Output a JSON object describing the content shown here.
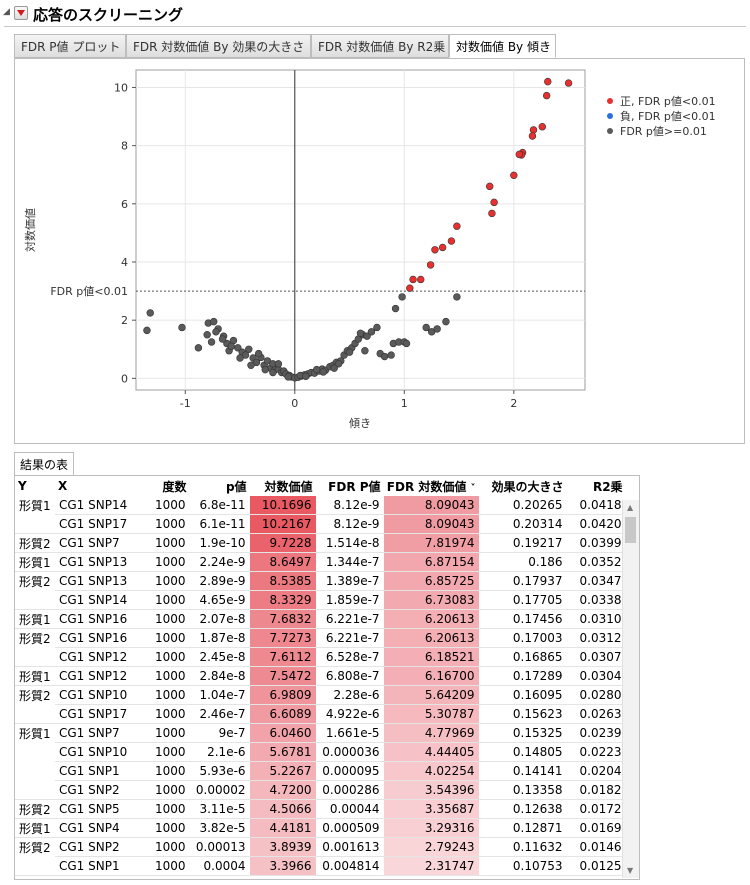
{
  "window": {
    "title": "応答のスクリーニング"
  },
  "tabs": [
    {
      "label": "FDR P値 プロット",
      "active": false
    },
    {
      "label": "FDR 対数価値 By 効果の大きさ",
      "active": false
    },
    {
      "label": "FDR 対数価値 By R2乗",
      "active": false
    },
    {
      "label": "対数価値 By 傾き",
      "active": true
    }
  ],
  "chart_data": {
    "type": "scatter",
    "title": "",
    "xlabel": "傾き",
    "ylabel": "対数価値",
    "xlim": [
      -1.45,
      2.65
    ],
    "ylim": [
      -0.4,
      10.6
    ],
    "x_ticks": [
      -1,
      0,
      1,
      2
    ],
    "y_ticks": [
      0,
      2,
      4,
      6,
      8,
      10
    ],
    "reference_line": {
      "y": 3.0,
      "label": "FDR p値<0.01"
    },
    "legend": [
      {
        "name": "正, FDR p値<0.01",
        "color": "#e8312f"
      },
      {
        "name": "負, FDR p値<0.01",
        "color": "#2a6fdc"
      },
      {
        "name": "FDR p値>=0.01",
        "color": "#5a5a5a"
      }
    ],
    "series": [
      {
        "name": "正, FDR p値<0.01",
        "color": "#e8312f",
        "points": [
          [
            2.5,
            10.15
          ],
          [
            2.31,
            10.2
          ],
          [
            2.3,
            9.72
          ],
          [
            2.26,
            8.65
          ],
          [
            2.18,
            8.54
          ],
          [
            2.17,
            8.33
          ],
          [
            2.08,
            7.76
          ],
          [
            2.07,
            7.68
          ],
          [
            2.05,
            7.7
          ],
          [
            2.0,
            6.98
          ],
          [
            1.82,
            6.05
          ],
          [
            1.78,
            6.6
          ],
          [
            1.8,
            5.67
          ],
          [
            1.48,
            5.23
          ],
          [
            1.43,
            4.72
          ],
          [
            1.35,
            4.5
          ],
          [
            1.28,
            4.42
          ],
          [
            1.24,
            3.9
          ],
          [
            1.15,
            3.4
          ],
          [
            1.08,
            3.4
          ],
          [
            1.05,
            3.1
          ]
        ]
      },
      {
        "name": "FDR p値>=0.01",
        "color": "#5a5a5a",
        "points": [
          [
            -1.32,
            2.25
          ],
          [
            -1.35,
            1.65
          ],
          [
            -1.03,
            1.75
          ],
          [
            -0.88,
            1.05
          ],
          [
            -0.79,
            1.9
          ],
          [
            -0.74,
            1.95
          ],
          [
            -0.7,
            1.7
          ],
          [
            -0.65,
            1.45
          ],
          [
            -0.62,
            1.2
          ],
          [
            -0.56,
            1.3
          ],
          [
            -0.52,
            1.05
          ],
          [
            -0.48,
            0.9
          ],
          [
            -0.42,
            1.0
          ],
          [
            -0.38,
            0.7
          ],
          [
            -0.35,
            0.55
          ],
          [
            -0.31,
            0.72
          ],
          [
            -0.28,
            0.45
          ],
          [
            -0.25,
            0.6
          ],
          [
            -0.22,
            0.35
          ],
          [
            -0.2,
            0.5
          ],
          [
            -0.18,
            0.3
          ],
          [
            -0.15,
            0.32
          ],
          [
            -0.12,
            0.2
          ],
          [
            -0.1,
            0.25
          ],
          [
            -0.08,
            0.15
          ],
          [
            -0.05,
            0.1
          ],
          [
            -0.03,
            0.05
          ],
          [
            0.0,
            0.02
          ],
          [
            0.03,
            0.04
          ],
          [
            0.06,
            0.08
          ],
          [
            0.09,
            0.12
          ],
          [
            0.12,
            0.15
          ],
          [
            0.15,
            0.2
          ],
          [
            0.18,
            0.18
          ],
          [
            0.22,
            0.25
          ],
          [
            0.25,
            0.32
          ],
          [
            0.28,
            0.28
          ],
          [
            0.32,
            0.4
          ],
          [
            0.35,
            0.45
          ],
          [
            0.38,
            0.55
          ],
          [
            0.42,
            0.6
          ],
          [
            0.45,
            0.8
          ],
          [
            0.48,
            0.95
          ],
          [
            0.52,
            1.05
          ],
          [
            0.55,
            1.2
          ],
          [
            0.58,
            1.35
          ],
          [
            0.62,
            1.5
          ],
          [
            0.66,
            1.45
          ],
          [
            0.7,
            1.6
          ],
          [
            0.75,
            1.75
          ],
          [
            0.78,
            0.85
          ],
          [
            0.82,
            0.75
          ],
          [
            0.88,
            0.8
          ],
          [
            0.9,
            1.2
          ],
          [
            0.92,
            2.4
          ],
          [
            0.95,
            1.25
          ],
          [
            0.98,
            2.8
          ],
          [
            1.0,
            1.25
          ],
          [
            1.02,
            1.2
          ],
          [
            1.2,
            1.75
          ],
          [
            1.25,
            1.6
          ],
          [
            1.3,
            1.7
          ],
          [
            1.38,
            1.95
          ],
          [
            1.48,
            2.8
          ],
          [
            -0.8,
            1.5
          ],
          [
            -0.6,
            0.95
          ],
          [
            -0.45,
            0.8
          ],
          [
            -0.33,
            0.85
          ],
          [
            -0.15,
            0.5
          ],
          [
            0.05,
            0.1
          ],
          [
            0.2,
            0.3
          ],
          [
            0.4,
            0.5
          ],
          [
            0.5,
            0.9
          ],
          [
            -0.66,
            1.35
          ],
          [
            -0.58,
            1.1
          ],
          [
            -0.5,
            0.7
          ],
          [
            -0.4,
            0.45
          ],
          [
            -0.27,
            0.3
          ],
          [
            -0.2,
            0.2
          ],
          [
            -0.06,
            0.05
          ],
          [
            0.1,
            0.07
          ],
          [
            0.26,
            0.22
          ],
          [
            0.36,
            0.35
          ],
          [
            0.6,
            1.55
          ],
          [
            0.64,
            0.95
          ],
          [
            -0.72,
            1.6
          ],
          [
            -0.76,
            1.25
          ]
        ]
      }
    ]
  },
  "results": {
    "tab_label": "結果の表",
    "columns": [
      "Y",
      "X",
      "度数",
      "p値",
      "対数価値",
      "FDR P値",
      "FDR 対数価値",
      "効果の大きさ",
      "R2乗"
    ],
    "sort_indicator": "˅",
    "rows": [
      {
        "y": "形質1",
        "x": "CG1 SNP14",
        "n": "1000",
        "p": "6.8e-11",
        "logw": "10.1696",
        "fdrp": "8.12e-9",
        "fdrlog": "8.09043",
        "eff": "0.20265",
        "r2": "0.0418"
      },
      {
        "y": "",
        "x": "CG1 SNP17",
        "n": "1000",
        "p": "6.1e-11",
        "logw": "10.2167",
        "fdrp": "8.12e-9",
        "fdrlog": "8.09043",
        "eff": "0.20314",
        "r2": "0.0420"
      },
      {
        "y": "形質2",
        "x": "CG1 SNP7",
        "n": "1000",
        "p": "1.9e-10",
        "logw": "9.7228",
        "fdrp": "1.514e-8",
        "fdrlog": "7.81974",
        "eff": "0.19217",
        "r2": "0.0399"
      },
      {
        "y": "形質1",
        "x": "CG1 SNP13",
        "n": "1000",
        "p": "2.24e-9",
        "logw": "8.6497",
        "fdrp": "1.344e-7",
        "fdrlog": "6.87154",
        "eff": "0.186",
        "r2": "0.0352"
      },
      {
        "y": "形質2",
        "x": "CG1 SNP13",
        "n": "1000",
        "p": "2.89e-9",
        "logw": "8.5385",
        "fdrp": "1.389e-7",
        "fdrlog": "6.85725",
        "eff": "0.17937",
        "r2": "0.0347"
      },
      {
        "y": "",
        "x": "CG1 SNP14",
        "n": "1000",
        "p": "4.65e-9",
        "logw": "8.3329",
        "fdrp": "1.859e-7",
        "fdrlog": "6.73083",
        "eff": "0.17705",
        "r2": "0.0338"
      },
      {
        "y": "形質1",
        "x": "CG1 SNP16",
        "n": "1000",
        "p": "2.07e-8",
        "logw": "7.6832",
        "fdrp": "6.221e-7",
        "fdrlog": "6.20613",
        "eff": "0.17456",
        "r2": "0.0310"
      },
      {
        "y": "形質2",
        "x": "CG1 SNP16",
        "n": "1000",
        "p": "1.87e-8",
        "logw": "7.7273",
        "fdrp": "6.221e-7",
        "fdrlog": "6.20613",
        "eff": "0.17003",
        "r2": "0.0312"
      },
      {
        "y": "",
        "x": "CG1 SNP12",
        "n": "1000",
        "p": "2.45e-8",
        "logw": "7.6112",
        "fdrp": "6.528e-7",
        "fdrlog": "6.18521",
        "eff": "0.16865",
        "r2": "0.0307"
      },
      {
        "y": "形質1",
        "x": "CG1 SNP12",
        "n": "1000",
        "p": "2.84e-8",
        "logw": "7.5472",
        "fdrp": "6.808e-7",
        "fdrlog": "6.16700",
        "eff": "0.17289",
        "r2": "0.0304"
      },
      {
        "y": "形質2",
        "x": "CG1 SNP10",
        "n": "1000",
        "p": "1.04e-7",
        "logw": "6.9809",
        "fdrp": "2.28e-6",
        "fdrlog": "5.64209",
        "eff": "0.16095",
        "r2": "0.0280"
      },
      {
        "y": "",
        "x": "CG1 SNP17",
        "n": "1000",
        "p": "2.46e-7",
        "logw": "6.6089",
        "fdrp": "4.922e-6",
        "fdrlog": "5.30787",
        "eff": "0.15623",
        "r2": "0.0263"
      },
      {
        "y": "形質1",
        "x": "CG1 SNP7",
        "n": "1000",
        "p": "9e-7",
        "logw": "6.0460",
        "fdrp": "1.661e-5",
        "fdrlog": "4.77969",
        "eff": "0.15325",
        "r2": "0.0239"
      },
      {
        "y": "",
        "x": "CG1 SNP10",
        "n": "1000",
        "p": "2.1e-6",
        "logw": "5.6781",
        "fdrp": "0.000036",
        "fdrlog": "4.44405",
        "eff": "0.14805",
        "r2": "0.0223"
      },
      {
        "y": "",
        "x": "CG1 SNP1",
        "n": "1000",
        "p": "5.93e-6",
        "logw": "5.2267",
        "fdrp": "0.000095",
        "fdrlog": "4.02254",
        "eff": "0.14141",
        "r2": "0.0204"
      },
      {
        "y": "",
        "x": "CG1 SNP2",
        "n": "1000",
        "p": "0.00002",
        "logw": "4.7200",
        "fdrp": "0.000286",
        "fdrlog": "3.54396",
        "eff": "0.13358",
        "r2": "0.0182"
      },
      {
        "y": "形質2",
        "x": "CG1 SNP5",
        "n": "1000",
        "p": "3.11e-5",
        "logw": "4.5066",
        "fdrp": "0.00044",
        "fdrlog": "3.35687",
        "eff": "0.12638",
        "r2": "0.0172"
      },
      {
        "y": "形質1",
        "x": "CG1 SNP4",
        "n": "1000",
        "p": "3.82e-5",
        "logw": "4.4181",
        "fdrp": "0.000509",
        "fdrlog": "3.29316",
        "eff": "0.12871",
        "r2": "0.0169"
      },
      {
        "y": "形質2",
        "x": "CG1 SNP2",
        "n": "1000",
        "p": "0.00013",
        "logw": "3.8939",
        "fdrp": "0.001613",
        "fdrlog": "2.79243",
        "eff": "0.11632",
        "r2": "0.0146"
      },
      {
        "y": "",
        "x": "CG1 SNP1",
        "n": "1000",
        "p": "0.0004",
        "logw": "3.3966",
        "fdrp": "0.004814",
        "fdrlog": "2.31747",
        "eff": "0.10753",
        "r2": "0.0125"
      }
    ]
  }
}
